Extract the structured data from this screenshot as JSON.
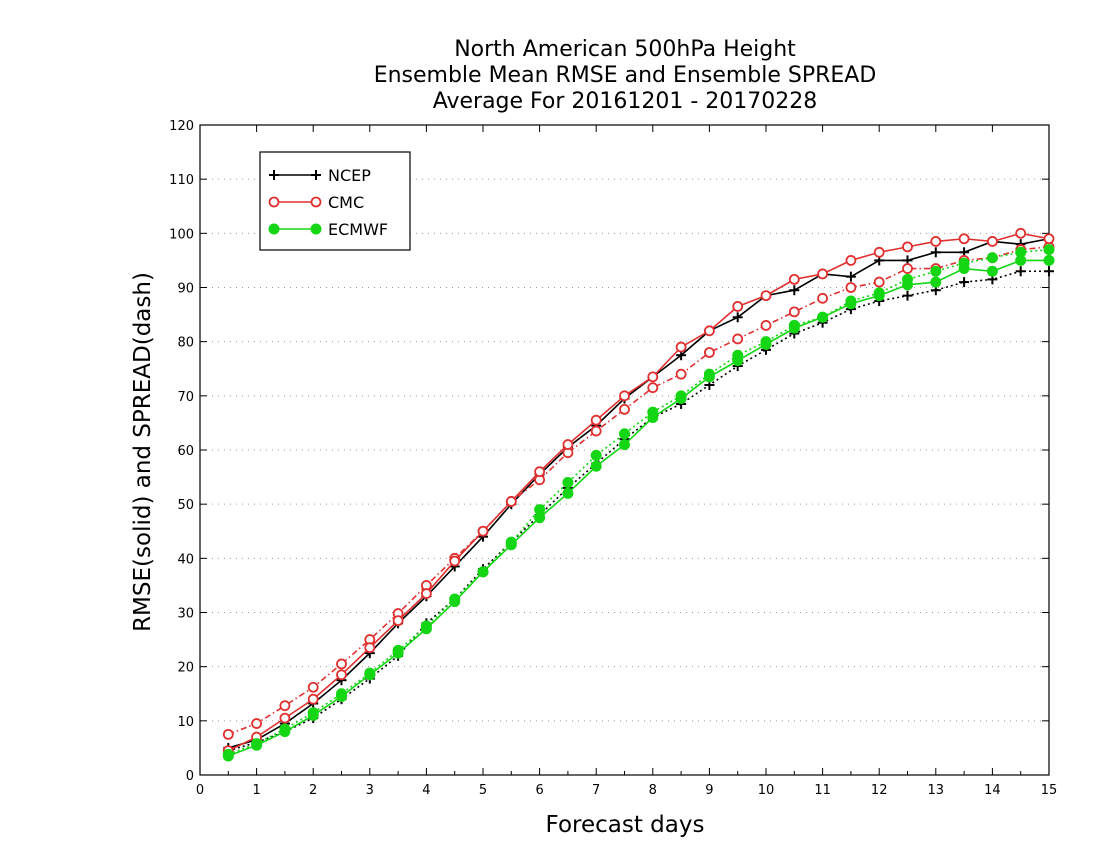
{
  "chart_data": {
    "type": "line",
    "title": [
      "North American 500hPa Height",
      "Ensemble Mean RMSE and Ensemble SPREAD",
      "Average For 20161201 - 20170228"
    ],
    "xlabel": "Forecast days",
    "ylabel": "RMSE(solid) and SPREAD(dash)",
    "xlim": [
      0,
      15
    ],
    "ylim": [
      0,
      120
    ],
    "xticks": [
      0,
      1,
      2,
      3,
      4,
      5,
      6,
      7,
      8,
      9,
      10,
      11,
      12,
      13,
      14,
      15
    ],
    "yticks": [
      0,
      10,
      20,
      30,
      40,
      50,
      60,
      70,
      80,
      90,
      100,
      110,
      120
    ],
    "grid": true,
    "legend_position": "top-left",
    "x": [
      0.5,
      1,
      1.5,
      2,
      2.5,
      3,
      3.5,
      4,
      4.5,
      5,
      5.5,
      6,
      6.5,
      7,
      7.5,
      8,
      8.5,
      9,
      9.5,
      10,
      10.5,
      11,
      11.5,
      12,
      12.5,
      13,
      13.5,
      14,
      14.5,
      15
    ],
    "series": [
      {
        "name": "NCEP",
        "color": "#000000",
        "marker": "plus",
        "rmse": [
          5.0,
          6.5,
          9.5,
          13.2,
          17.5,
          22.5,
          28.0,
          33.0,
          38.5,
          44.0,
          50.0,
          55.5,
          60.5,
          64.5,
          69.5,
          73.5,
          77.5,
          82.0,
          84.5,
          88.5,
          89.5,
          92.5,
          92.0,
          95.0,
          95.0,
          96.5,
          96.5,
          98.5,
          98.0,
          99.0
        ],
        "spread": [
          4.5,
          6.0,
          8.0,
          10.5,
          14.0,
          17.8,
          22.0,
          28.0,
          32.5,
          38.0,
          43.0,
          48.0,
          53.0,
          57.5,
          62.0,
          66.0,
          68.5,
          72.0,
          75.5,
          78.5,
          81.5,
          83.5,
          86.0,
          87.5,
          88.5,
          89.5,
          91.0,
          91.5,
          93.0,
          93.0
        ]
      },
      {
        "name": "CMC",
        "color": "#e03030",
        "marker": "open-circle",
        "rmse": [
          4.5,
          7.0,
          10.5,
          14.0,
          18.5,
          23.5,
          28.5,
          33.5,
          39.5,
          45.0,
          50.5,
          56.0,
          61.0,
          65.5,
          70.0,
          73.5,
          79.0,
          82.0,
          86.5,
          88.5,
          91.5,
          92.5,
          95.0,
          96.5,
          97.5,
          98.5,
          99.0,
          98.5,
          100.0,
          99.0
        ],
        "spread": [
          7.5,
          9.5,
          12.8,
          16.2,
          20.5,
          25.0,
          29.8,
          35.0,
          40.0,
          45.0,
          50.5,
          54.5,
          59.5,
          63.5,
          67.5,
          71.5,
          74.0,
          78.0,
          80.5,
          83.0,
          85.5,
          88.0,
          90.0,
          91.0,
          93.5,
          93.5,
          95.0,
          95.5,
          97.0,
          97.5
        ]
      },
      {
        "name": "ECMWF",
        "color": "#14d614",
        "marker": "filled-circle",
        "rmse": [
          3.5,
          5.5,
          8.0,
          11.0,
          14.5,
          18.5,
          22.5,
          27.0,
          32.0,
          37.5,
          42.5,
          47.5,
          52.0,
          57.0,
          61.0,
          66.0,
          69.5,
          73.5,
          76.5,
          79.5,
          82.5,
          84.5,
          87.0,
          88.5,
          90.5,
          91.0,
          93.5,
          93.0,
          95.0,
          95.0
        ],
        "spread": [
          3.8,
          5.8,
          8.5,
          11.5,
          15.0,
          18.8,
          23.0,
          27.5,
          32.5,
          37.5,
          43.0,
          49.0,
          54.0,
          59.0,
          63.0,
          67.0,
          70.0,
          74.0,
          77.5,
          80.0,
          83.0,
          84.5,
          87.5,
          89.0,
          91.5,
          93.0,
          94.5,
          95.5,
          96.5,
          97.0
        ]
      }
    ]
  }
}
